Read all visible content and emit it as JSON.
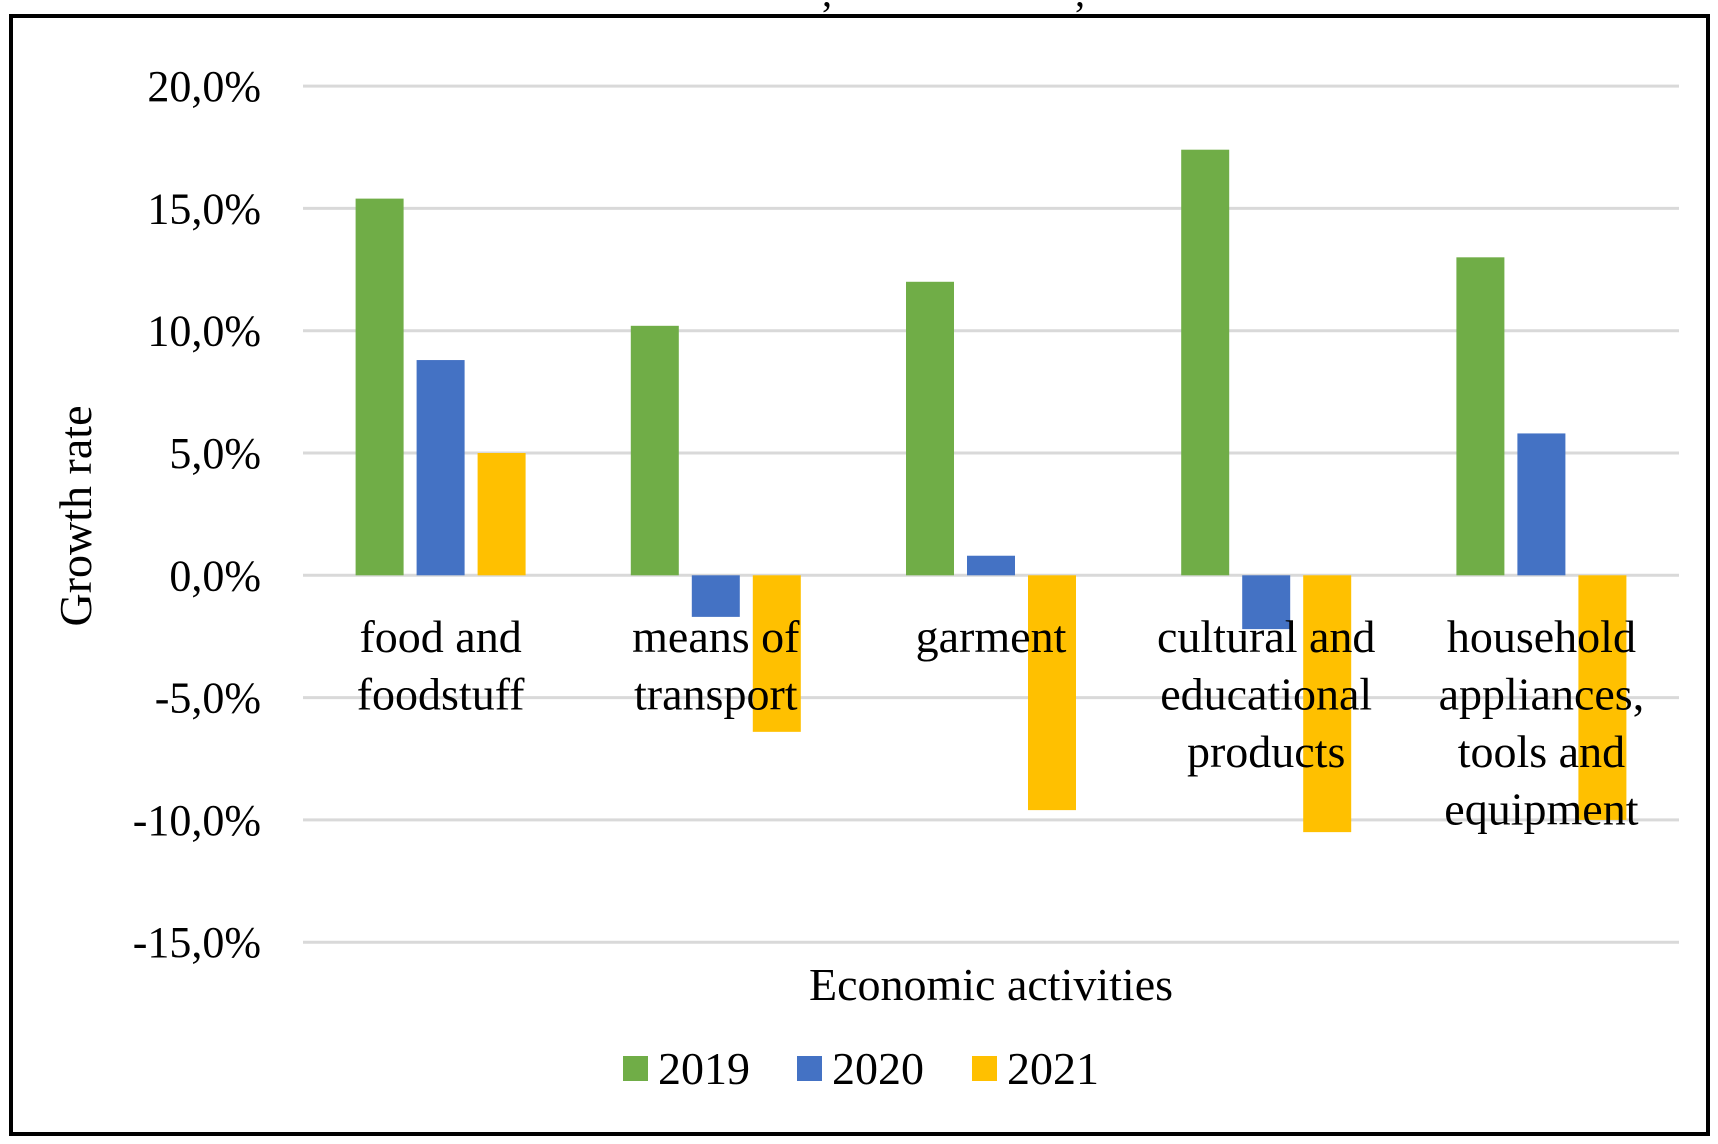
{
  "chart_data": {
    "type": "bar",
    "title": "",
    "xlabel": "Economic activities",
    "ylabel": "Growth rate",
    "ylim": [
      -15,
      20
    ],
    "ytick_step": 5,
    "yticks": [
      "20,0%",
      "15,0%",
      "10,0%",
      "5,0%",
      "0,0%",
      "-5,0%",
      "-10,0%",
      "-15,0%"
    ],
    "ytick_values": [
      20,
      15,
      10,
      5,
      0,
      -5,
      -10,
      -15
    ],
    "grid": true,
    "legend_position": "bottom",
    "categories": [
      "food and foodstuff",
      "means of transport",
      "garment",
      "cultural and educational products",
      "household appliances, tools and equipment"
    ],
    "category_label_lines": [
      [
        "food and",
        "foodstuff"
      ],
      [
        "means of",
        "transport"
      ],
      [
        "garment"
      ],
      [
        "cultural and",
        "educational",
        "products"
      ],
      [
        "household",
        "appliances,",
        "tools and",
        "equipment"
      ]
    ],
    "series": [
      {
        "name": "2019",
        "color": "#70AD47",
        "values": [
          15.4,
          10.2,
          12.0,
          17.4,
          13.0
        ]
      },
      {
        "name": "2020",
        "color": "#4472C4",
        "values": [
          8.8,
          -1.7,
          0.8,
          -2.2,
          5.8
        ]
      },
      {
        "name": "2021",
        "color": "#FFC000",
        "values": [
          5.0,
          -6.4,
          -9.6,
          -10.5,
          -10.0
        ]
      }
    ],
    "unit": "%",
    "gridline_color": "#D9D9D9",
    "frame_color": "#000000"
  },
  "top_fragments": [
    ",",
    ","
  ]
}
